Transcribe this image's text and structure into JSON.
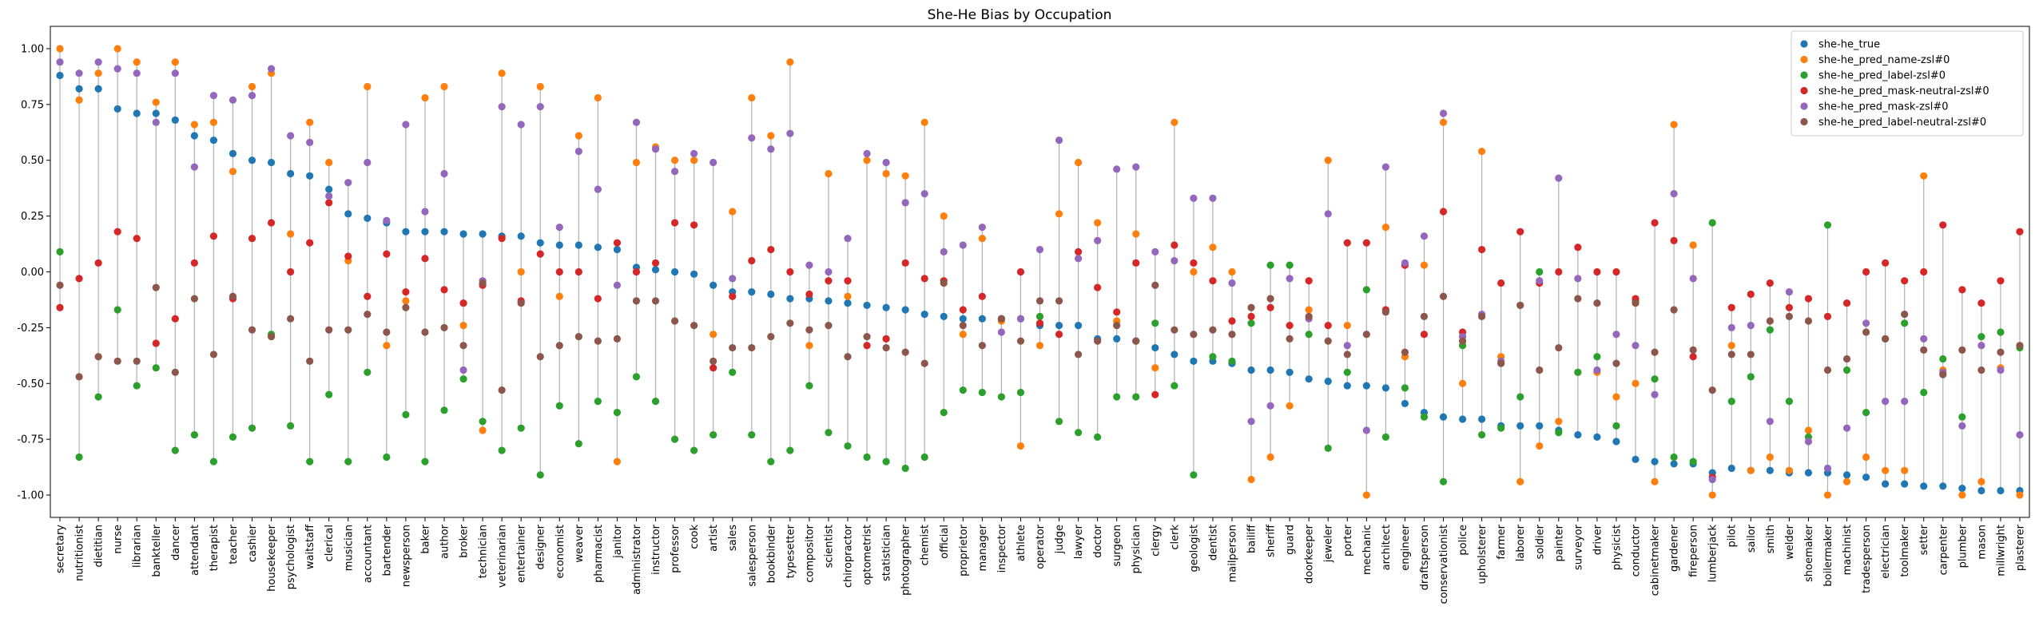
{
  "chart_data": {
    "type": "scatter",
    "title": "She-He Bias by Occupation",
    "xlabel": "",
    "ylabel": "",
    "ylim": [
      -1.1,
      1.1
    ],
    "yticks": [
      "1.00",
      "0.75",
      "0.50",
      "0.25",
      "0.00",
      "-0.25",
      "-0.50",
      "-0.75",
      "-1.00"
    ],
    "ytick_values": [
      1.0,
      0.75,
      0.5,
      0.25,
      0.0,
      -0.25,
      -0.5,
      -0.75,
      -1.0
    ],
    "legend_position": "top-right",
    "colors": {
      "she-he_true": "#1f77b4",
      "she-he_pred_name-zsl#0": "#ff7f0e",
      "she-he_pred_label-zsl#0": "#2ca02c",
      "she-he_pred_mask-neutral-zsl#0": "#d62728",
      "she-he_pred_mask-zsl#0": "#9467bd",
      "she-he_pred_label-neutral-zsl#0": "#8c564b",
      "range_line": "#b0b0b0"
    },
    "categories": [
      "secretary",
      "nutritionist",
      "dietitian",
      "nurse",
      "librarian",
      "bankteller",
      "dancer",
      "attendant",
      "therapist",
      "teacher",
      "cashier",
      "housekeeper",
      "psychologist",
      "waitstaff",
      "clerical",
      "musician",
      "accountant",
      "bartender",
      "newsperson",
      "baker",
      "author",
      "broker",
      "technician",
      "veterinarian",
      "entertainer",
      "designer",
      "economist",
      "weaver",
      "pharmacist",
      "janitor",
      "administrator",
      "instructor",
      "professor",
      "cook",
      "artist",
      "sales",
      "salesperson",
      "bookbinder",
      "typesetter",
      "compositor",
      "scientist",
      "chiropractor",
      "optometrist",
      "statistician",
      "photographer",
      "chemist",
      "official",
      "proprietor",
      "manager",
      "inspector",
      "athlete",
      "operator",
      "judge",
      "lawyer",
      "doctor",
      "surgeon",
      "physician",
      "clergy",
      "clerk",
      "geologist",
      "dentist",
      "mailperson",
      "bailiff",
      "sheriff",
      "guard",
      "doorkeeper",
      "jeweler",
      "porter",
      "mechanic",
      "architect",
      "engineer",
      "draftsperson",
      "conservationist",
      "police",
      "upholsterer",
      "farmer",
      "laborer",
      "soldier",
      "painter",
      "surveyor",
      "driver",
      "physicist",
      "conductor",
      "cabinetmaker",
      "gardener",
      "fireperson",
      "lumberjack",
      "pilot",
      "sailor",
      "smith",
      "welder",
      "shoemaker",
      "boilermaker",
      "machinist",
      "tradesperson",
      "electrician",
      "toolmaker",
      "setter",
      "carpenter",
      "plumber",
      "mason",
      "millwright",
      "plasterer"
    ],
    "series": [
      {
        "name": "she-he_true",
        "values": [
          0.88,
          0.82,
          0.82,
          0.73,
          0.71,
          0.71,
          0.68,
          0.61,
          0.59,
          0.53,
          0.5,
          0.49,
          0.44,
          0.43,
          0.37,
          0.26,
          0.24,
          0.22,
          0.18,
          0.18,
          0.18,
          0.17,
          0.17,
          0.16,
          0.16,
          0.13,
          0.12,
          0.12,
          0.11,
          0.1,
          0.02,
          0.01,
          0.0,
          -0.01,
          -0.06,
          -0.09,
          -0.09,
          -0.1,
          -0.12,
          -0.12,
          -0.13,
          -0.14,
          -0.15,
          -0.16,
          -0.17,
          -0.19,
          -0.2,
          -0.21,
          -0.21,
          -0.21,
          -0.21,
          -0.24,
          -0.24,
          -0.24,
          -0.3,
          -0.3,
          -0.31,
          -0.34,
          -0.37,
          -0.4,
          -0.4,
          -0.41,
          -0.44,
          -0.44,
          -0.45,
          -0.48,
          -0.49,
          -0.51,
          -0.51,
          -0.52,
          -0.59,
          -0.63,
          -0.65,
          -0.66,
          -0.66,
          -0.69,
          -0.69,
          -0.69,
          -0.71,
          -0.73,
          -0.74,
          -0.76,
          -0.84,
          -0.85,
          -0.86,
          -0.86,
          -0.9,
          -0.88,
          -0.89,
          -0.89,
          -0.9,
          -0.9,
          -0.9,
          -0.91,
          -0.92,
          -0.95,
          -0.95,
          -0.96,
          -0.96,
          -0.97,
          -0.98,
          -0.98,
          -0.98
        ]
      },
      {
        "name": "she-he_pred_name-zsl#0",
        "values": [
          1.0,
          0.77,
          0.89,
          1.0,
          0.94,
          0.76,
          0.94,
          0.66,
          0.67,
          0.45,
          0.83,
          0.89,
          0.17,
          0.67,
          0.49,
          0.05,
          0.83,
          -0.33,
          -0.13,
          0.78,
          0.83,
          -0.24,
          -0.71,
          0.89,
          0.0,
          0.83,
          -0.11,
          0.61,
          0.78,
          -0.85,
          0.49,
          0.56,
          0.5,
          0.5,
          -0.28,
          0.27,
          0.78,
          0.61,
          0.94,
          -0.33,
          0.44,
          -0.11,
          0.5,
          0.44,
          0.43,
          0.67,
          0.25,
          -0.28,
          0.15,
          -0.22,
          -0.78,
          -0.33,
          0.26,
          0.49,
          0.22,
          -0.22,
          0.17,
          -0.43,
          0.67,
          0.0,
          0.11,
          0.0,
          -0.93,
          -0.83,
          -0.6,
          -0.17,
          0.5,
          -0.24,
          -1.0,
          0.2,
          -0.38,
          0.03,
          0.67,
          -0.5,
          0.54,
          -0.38,
          -0.94,
          -0.78,
          -0.67,
          -0.45,
          -0.45,
          -0.56,
          -0.5,
          -0.94,
          0.66,
          0.12,
          -1.0,
          -0.33,
          -0.89,
          -0.83,
          -0.89,
          -0.71,
          -1.0,
          -0.94,
          -0.83,
          -0.89,
          -0.89,
          0.43,
          -0.44,
          -1.0,
          -0.94,
          -0.43,
          -1.0
        ]
      },
      {
        "name": "she-he_pred_label-zsl#0",
        "values": [
          0.09,
          -0.83,
          -0.56,
          -0.17,
          -0.51,
          -0.43,
          -0.8,
          -0.73,
          -0.85,
          -0.74,
          -0.7,
          -0.28,
          -0.69,
          -0.85,
          -0.55,
          -0.85,
          -0.45,
          -0.83,
          -0.64,
          -0.85,
          -0.62,
          -0.48,
          -0.67,
          -0.8,
          -0.7,
          -0.91,
          -0.6,
          -0.77,
          -0.58,
          -0.63,
          -0.47,
          -0.58,
          -0.75,
          -0.8,
          -0.73,
          -0.45,
          -0.73,
          -0.85,
          -0.8,
          -0.51,
          -0.72,
          -0.78,
          -0.83,
          -0.85,
          -0.88,
          -0.83,
          -0.63,
          -0.53,
          -0.54,
          -0.56,
          -0.54,
          -0.2,
          -0.67,
          -0.72,
          -0.74,
          -0.56,
          -0.56,
          -0.23,
          -0.51,
          -0.91,
          -0.38,
          -0.4,
          -0.23,
          0.03,
          0.03,
          -0.28,
          -0.79,
          -0.45,
          -0.08,
          -0.74,
          -0.52,
          -0.65,
          -0.94,
          -0.33,
          -0.73,
          -0.7,
          -0.56,
          0.0,
          -0.72,
          -0.45,
          -0.38,
          -0.69,
          -0.13,
          -0.48,
          -0.83,
          -0.85,
          0.22,
          -0.58,
          -0.47,
          -0.26,
          -0.58,
          -0.74,
          0.21,
          -0.44,
          -0.63,
          -0.3,
          -0.23,
          -0.54,
          -0.39,
          -0.65,
          -0.29,
          -0.27,
          -0.34
        ]
      },
      {
        "name": "she-he_pred_mask-neutral-zsl#0",
        "values": [
          -0.16,
          -0.03,
          0.04,
          0.18,
          0.15,
          -0.32,
          -0.21,
          0.04,
          0.16,
          -0.12,
          0.15,
          0.22,
          0.0,
          0.13,
          0.31,
          0.07,
          -0.11,
          0.08,
          -0.09,
          0.06,
          -0.08,
          -0.14,
          -0.06,
          0.15,
          -0.13,
          0.08,
          0.0,
          0.0,
          -0.12,
          0.13,
          0.0,
          0.04,
          0.22,
          0.21,
          -0.43,
          -0.11,
          0.05,
          0.1,
          0.0,
          -0.1,
          -0.04,
          -0.04,
          -0.33,
          -0.3,
          0.04,
          -0.03,
          -0.04,
          -0.17,
          -0.11,
          -0.21,
          0.0,
          -0.23,
          -0.28,
          0.09,
          -0.07,
          -0.18,
          0.04,
          -0.55,
          0.12,
          0.04,
          -0.04,
          -0.22,
          -0.2,
          -0.16,
          -0.24,
          -0.04,
          -0.24,
          0.13,
          0.13,
          -0.17,
          0.03,
          -0.28,
          0.27,
          -0.27,
          0.1,
          -0.05,
          0.18,
          -0.05,
          0.0,
          0.11,
          0.0,
          0.0,
          -0.12,
          0.22,
          0.14,
          -0.38,
          -0.92,
          -0.16,
          -0.1,
          -0.05,
          -0.16,
          -0.12,
          -0.2,
          -0.14,
          0.0,
          0.04,
          -0.04,
          0.0,
          0.21,
          -0.08,
          -0.14,
          -0.04,
          0.18
        ]
      },
      {
        "name": "she-he_pred_mask-zsl#0",
        "values": [
          0.94,
          0.89,
          0.94,
          0.91,
          0.89,
          0.67,
          0.89,
          0.47,
          0.79,
          0.77,
          0.79,
          0.91,
          0.61,
          0.58,
          0.34,
          0.4,
          0.49,
          0.23,
          0.66,
          0.27,
          0.44,
          -0.44,
          -0.04,
          0.74,
          0.66,
          0.74,
          0.2,
          0.54,
          0.37,
          -0.06,
          0.67,
          0.55,
          0.45,
          0.53,
          0.49,
          -0.03,
          0.6,
          0.55,
          0.62,
          0.03,
          0.0,
          0.15,
          0.53,
          0.49,
          0.31,
          0.35,
          0.09,
          0.12,
          0.2,
          -0.27,
          -0.21,
          0.1,
          0.59,
          0.06,
          0.14,
          0.46,
          0.47,
          0.09,
          0.05,
          0.33,
          0.33,
          -0.05,
          -0.67,
          -0.6,
          -0.03,
          -0.21,
          0.26,
          -0.33,
          -0.71,
          0.47,
          0.04,
          0.16,
          0.71,
          -0.29,
          -0.19,
          -0.4,
          -0.15,
          -0.04,
          0.42,
          -0.03,
          -0.44,
          -0.28,
          -0.33,
          -0.55,
          0.35,
          -0.03,
          -0.93,
          -0.25,
          -0.24,
          -0.67,
          -0.09,
          -0.76,
          -0.88,
          -0.7,
          -0.23,
          -0.58,
          -0.58,
          -0.3,
          -0.45,
          -0.69,
          -0.33,
          -0.44,
          -0.73
        ]
      },
      {
        "name": "she-he_pred_label-neutral-zsl#0",
        "values": [
          -0.06,
          -0.47,
          -0.38,
          -0.4,
          -0.4,
          -0.07,
          -0.45,
          -0.12,
          -0.37,
          -0.11,
          -0.26,
          -0.29,
          -0.21,
          -0.4,
          -0.26,
          -0.26,
          -0.19,
          -0.27,
          -0.16,
          -0.27,
          -0.25,
          -0.33,
          -0.05,
          -0.53,
          -0.14,
          -0.38,
          -0.33,
          -0.29,
          -0.31,
          -0.3,
          -0.13,
          -0.13,
          -0.22,
          -0.24,
          -0.4,
          -0.34,
          -0.34,
          -0.29,
          -0.23,
          -0.26,
          -0.24,
          -0.38,
          -0.29,
          -0.34,
          -0.36,
          -0.41,
          -0.05,
          -0.24,
          -0.33,
          -0.21,
          -0.31,
          -0.13,
          -0.13,
          -0.37,
          -0.31,
          -0.24,
          -0.31,
          -0.06,
          -0.26,
          -0.28,
          -0.26,
          -0.28,
          -0.16,
          -0.12,
          -0.3,
          -0.2,
          -0.31,
          -0.37,
          -0.28,
          -0.18,
          -0.36,
          -0.2,
          -0.11,
          -0.31,
          -0.2,
          -0.41,
          -0.15,
          -0.44,
          -0.34,
          -0.12,
          -0.14,
          -0.41,
          -0.14,
          -0.36,
          -0.17,
          -0.35,
          -0.53,
          -0.37,
          -0.37,
          -0.22,
          -0.2,
          -0.22,
          -0.44,
          -0.39,
          -0.27,
          -0.3,
          -0.19,
          -0.35,
          -0.46,
          -0.35,
          -0.44,
          -0.36,
          -0.33
        ]
      }
    ]
  }
}
